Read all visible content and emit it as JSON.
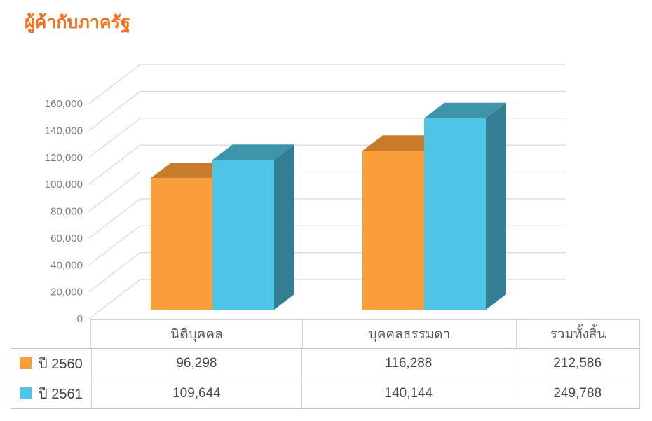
{
  "title": "ผู้ค้ากับภาครัฐ",
  "title_color": "#F4711C",
  "chart_data": {
    "type": "bar",
    "projection": "3d",
    "title": "ผู้ค้ากับภาครัฐ",
    "categories": [
      "นิติบุคคล",
      "บุคคลธรรมดา"
    ],
    "series": [
      {
        "name": "ปี 2560",
        "values": [
          96298,
          116288
        ],
        "total": 212586,
        "color_front": "#FA9D3B",
        "color_top": "#C77B2B",
        "color_side": "#DD8A30"
      },
      {
        "name": "ปี 2561",
        "values": [
          109644,
          140144
        ],
        "total": 249788,
        "color_front": "#4EC4E6",
        "color_top": "#3D95AB",
        "color_side": "#337E93"
      }
    ],
    "xlabel": "",
    "ylabel": "",
    "ylim": [
      0,
      160000
    ],
    "ytick_step": 20000,
    "ytick_labels": [
      "0",
      "20,000",
      "40,000",
      "60,000",
      "80,000",
      "100,000",
      "120,000",
      "140,000",
      "160,000"
    ],
    "grid": true,
    "gridline_color": "#D8D8D8",
    "axis_label_color": "#7C7C7C",
    "legend_position": "bottom-table"
  },
  "table": {
    "columns": [
      "",
      "นิติบุคคล",
      "บุคคลธรรมดา",
      "รวมทั้งสิ้น"
    ],
    "rows": [
      {
        "label": "ปี 2560",
        "swatch": "#FA9D3B",
        "values": [
          "96,298",
          "116,288",
          "212,586"
        ]
      },
      {
        "label": "ปี 2561",
        "swatch": "#4EC4E6",
        "values": [
          "109,644",
          "140,144",
          "249,788"
        ]
      }
    ]
  }
}
